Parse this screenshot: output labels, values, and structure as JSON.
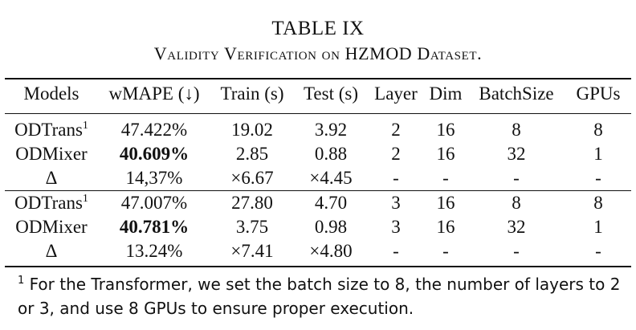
{
  "table": {
    "number": "TABLE IX",
    "title": "Validity Verification on HZMOD Dataset.",
    "headers": [
      "Models",
      "wMAPE (↓)",
      "Train (s)",
      "Test (s)",
      "Layer",
      "Dim",
      "BatchSize",
      "GPUs"
    ],
    "group1": [
      {
        "model": "ODTrans",
        "mark": "1",
        "wmape": "47.422%",
        "train": "19.02",
        "test": "3.92",
        "layer": "2",
        "dim": "16",
        "batch": "8",
        "gpus": "8"
      },
      {
        "model": "ODMixer",
        "mark": "",
        "wmape": "40.609%",
        "train": "2.85",
        "test": "0.88",
        "layer": "2",
        "dim": "16",
        "batch": "32",
        "gpus": "1"
      },
      {
        "model": "Δ",
        "mark": "",
        "wmape": "14,37%",
        "train": "×6.67",
        "test": "×4.45",
        "layer": "-",
        "dim": "-",
        "batch": "-",
        "gpus": "-"
      }
    ],
    "group2": [
      {
        "model": "ODTrans",
        "mark": "1",
        "wmape": "47.007%",
        "train": "27.80",
        "test": "4.70",
        "layer": "3",
        "dim": "16",
        "batch": "8",
        "gpus": "8"
      },
      {
        "model": "ODMixer",
        "mark": "",
        "wmape": "40.781%",
        "train": "3.75",
        "test": "0.98",
        "layer": "3",
        "dim": "16",
        "batch": "32",
        "gpus": "1"
      },
      {
        "model": "Δ",
        "mark": "",
        "wmape": "13.24%",
        "train": "×7.41",
        "test": "×4.80",
        "layer": "-",
        "dim": "-",
        "batch": "-",
        "gpus": "-"
      }
    ]
  },
  "footnote": {
    "mark": "1",
    "text": "For the Transformer, we set the batch size to 8, the number of layers to 2 or 3, and use 8 GPUs to ensure proper execution."
  }
}
